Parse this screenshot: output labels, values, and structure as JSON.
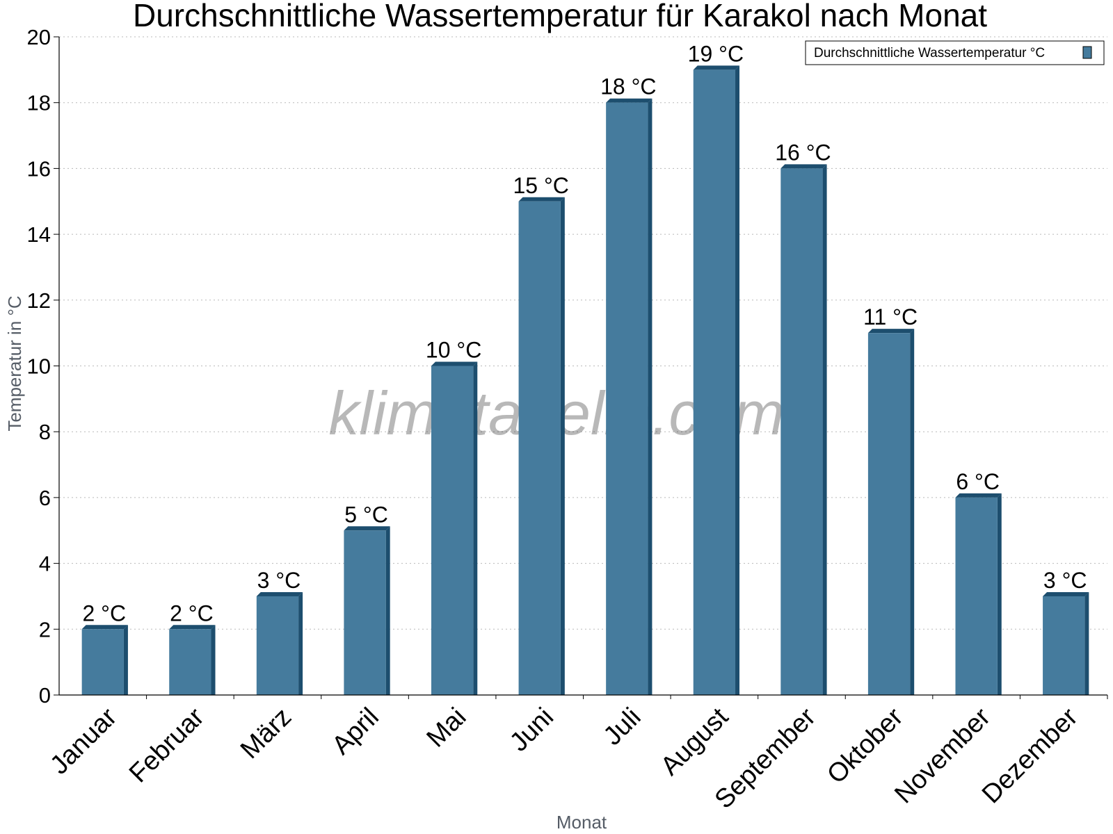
{
  "chart_data": {
    "type": "bar",
    "title": "Durchschnittliche Wassertemperatur für Karakol nach Monat",
    "xlabel": "Monat",
    "ylabel": "Temperatur in °C",
    "categories": [
      "Januar",
      "Februar",
      "März",
      "April",
      "Mai",
      "Juni",
      "Juli",
      "August",
      "September",
      "Oktober",
      "November",
      "Dezember"
    ],
    "series": [
      {
        "name": "Durchschnittliche Wassertemperatur °C",
        "values": [
          2,
          2,
          3,
          5,
          10,
          15,
          18,
          19,
          16,
          11,
          6,
          3
        ],
        "labels": [
          "2 °C",
          "2 °C",
          "3 °C",
          "5 °C",
          "10 °C",
          "15 °C",
          "18 °C",
          "19 °C",
          "16 °C",
          "11 °C",
          "6 °C",
          "3 °C"
        ],
        "color": "#457b9d",
        "shade_color": "#1d4e6e"
      }
    ],
    "ylim": [
      0,
      20
    ],
    "yticks": [
      0,
      2,
      4,
      6,
      8,
      10,
      12,
      14,
      16,
      18,
      20
    ],
    "grid": true,
    "legend_position": "top-right"
  },
  "watermark": "klimatabelle.com"
}
